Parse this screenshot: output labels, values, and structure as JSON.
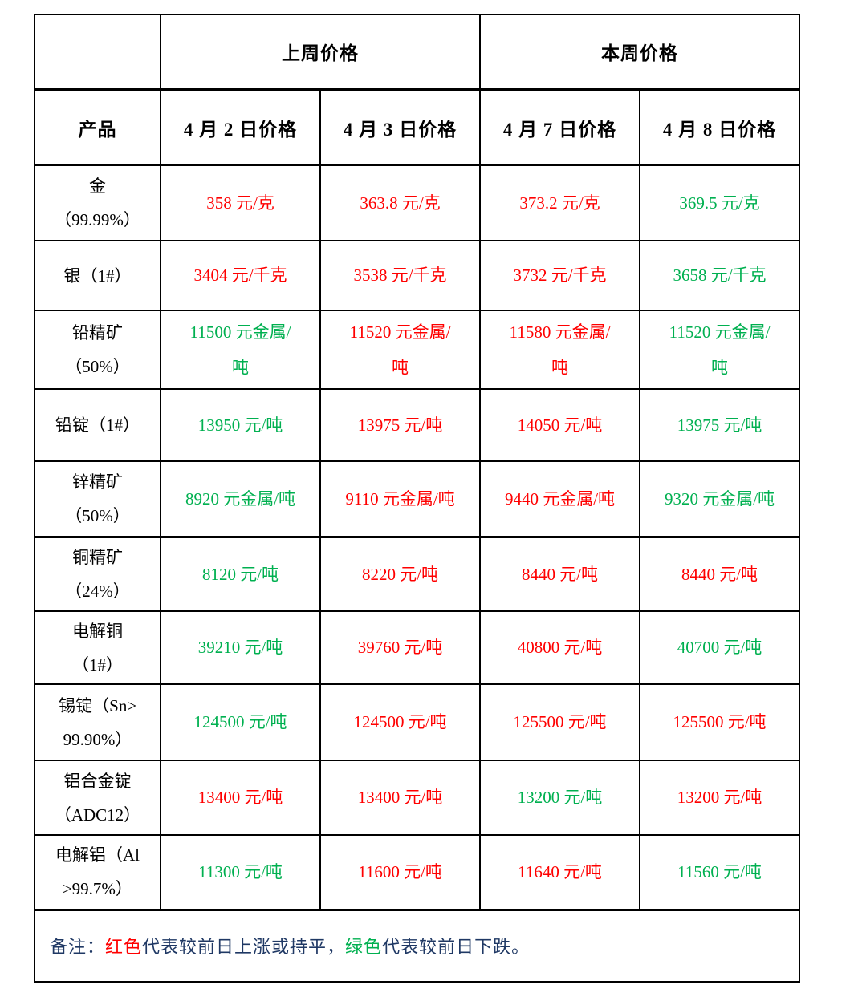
{
  "colors": {
    "up": "#FF0000",
    "down": "#00B050",
    "note": "#1F3864",
    "black": "#000000"
  },
  "table": {
    "group_headers": {
      "last_week": "上周价格",
      "this_week": "本周价格"
    },
    "columns": [
      "产品",
      "4 月 2 日价格",
      "4 月 3 日价格",
      "4 月 7 日价格",
      "4 月 8 日价格"
    ],
    "rows": [
      {
        "product": [
          "金",
          "（99.99%）"
        ],
        "prices": [
          {
            "lines": [
              "358 元/克"
            ],
            "trend": "up"
          },
          {
            "lines": [
              "363.8 元/克"
            ],
            "trend": "up"
          },
          {
            "lines": [
              "373.2 元/克"
            ],
            "trend": "up"
          },
          {
            "lines": [
              "369.5 元/克"
            ],
            "trend": "down"
          }
        ]
      },
      {
        "product": [
          "银（1#）"
        ],
        "prices": [
          {
            "lines": [
              "3404 元/千克"
            ],
            "trend": "up"
          },
          {
            "lines": [
              "3538 元/千克"
            ],
            "trend": "up"
          },
          {
            "lines": [
              "3732 元/千克"
            ],
            "trend": "up"
          },
          {
            "lines": [
              "3658 元/千克"
            ],
            "trend": "down"
          }
        ]
      },
      {
        "product": [
          "铅精矿",
          "（50%）"
        ],
        "prices": [
          {
            "lines": [
              "11500 元金属/",
              "吨"
            ],
            "trend": "down"
          },
          {
            "lines": [
              "11520 元金属/",
              "吨"
            ],
            "trend": "up"
          },
          {
            "lines": [
              "11580 元金属/",
              "吨"
            ],
            "trend": "up"
          },
          {
            "lines": [
              "11520 元金属/",
              "吨"
            ],
            "trend": "down"
          }
        ]
      },
      {
        "product": [
          "铅锭（1#）"
        ],
        "prices": [
          {
            "lines": [
              "13950 元/吨"
            ],
            "trend": "down"
          },
          {
            "lines": [
              "13975 元/吨"
            ],
            "trend": "up"
          },
          {
            "lines": [
              "14050 元/吨"
            ],
            "trend": "up"
          },
          {
            "lines": [
              "13975 元/吨"
            ],
            "trend": "down"
          }
        ]
      },
      {
        "product": [
          "锌精矿",
          "（50%）"
        ],
        "prices": [
          {
            "lines": [
              "8920 元金属/吨"
            ],
            "trend": "down"
          },
          {
            "lines": [
              "9110 元金属/吨"
            ],
            "trend": "up"
          },
          {
            "lines": [
              "9440 元金属/吨"
            ],
            "trend": "up"
          },
          {
            "lines": [
              "9320 元金属/吨"
            ],
            "trend": "down"
          }
        ]
      },
      {
        "product": [
          "铜精矿",
          "（24%）"
        ],
        "prices": [
          {
            "lines": [
              "8120 元/吨"
            ],
            "trend": "down"
          },
          {
            "lines": [
              "8220 元/吨"
            ],
            "trend": "up"
          },
          {
            "lines": [
              "8440 元/吨"
            ],
            "trend": "up"
          },
          {
            "lines": [
              "8440 元/吨"
            ],
            "trend": "up"
          }
        ]
      },
      {
        "product": [
          "电解铜",
          "（1#）"
        ],
        "prices": [
          {
            "lines": [
              "39210 元/吨"
            ],
            "trend": "down"
          },
          {
            "lines": [
              "39760 元/吨"
            ],
            "trend": "up"
          },
          {
            "lines": [
              "40800 元/吨"
            ],
            "trend": "up"
          },
          {
            "lines": [
              "40700 元/吨"
            ],
            "trend": "down"
          }
        ]
      },
      {
        "product": [
          "锡锭（Sn≥",
          "99.90%）"
        ],
        "prices": [
          {
            "lines": [
              "124500 元/吨"
            ],
            "trend": "down"
          },
          {
            "lines": [
              "124500 元/吨"
            ],
            "trend": "up"
          },
          {
            "lines": [
              "125500 元/吨"
            ],
            "trend": "up"
          },
          {
            "lines": [
              "125500 元/吨"
            ],
            "trend": "up"
          }
        ]
      },
      {
        "product": [
          "铝合金锭",
          "（ADC12）"
        ],
        "prices": [
          {
            "lines": [
              "13400 元/吨"
            ],
            "trend": "up"
          },
          {
            "lines": [
              "13400 元/吨"
            ],
            "trend": "up"
          },
          {
            "lines": [
              "13200 元/吨"
            ],
            "trend": "down"
          },
          {
            "lines": [
              "13200 元/吨"
            ],
            "trend": "up"
          }
        ]
      },
      {
        "product": [
          "电解铝（Al",
          "≥99.7%）"
        ],
        "prices": [
          {
            "lines": [
              "11300 元/吨"
            ],
            "trend": "down"
          },
          {
            "lines": [
              "11600 元/吨"
            ],
            "trend": "up"
          },
          {
            "lines": [
              "11640 元/吨"
            ],
            "trend": "up"
          },
          {
            "lines": [
              "11560 元/吨"
            ],
            "trend": "down"
          }
        ]
      }
    ]
  },
  "note": {
    "segments": [
      {
        "text": "备注：",
        "color": "note"
      },
      {
        "text": "红色",
        "color": "up"
      },
      {
        "text": "代表较前日上涨或持平，",
        "color": "note"
      },
      {
        "text": "绿色",
        "color": "down"
      },
      {
        "text": "代表较前日下跌。",
        "color": "note"
      }
    ]
  }
}
